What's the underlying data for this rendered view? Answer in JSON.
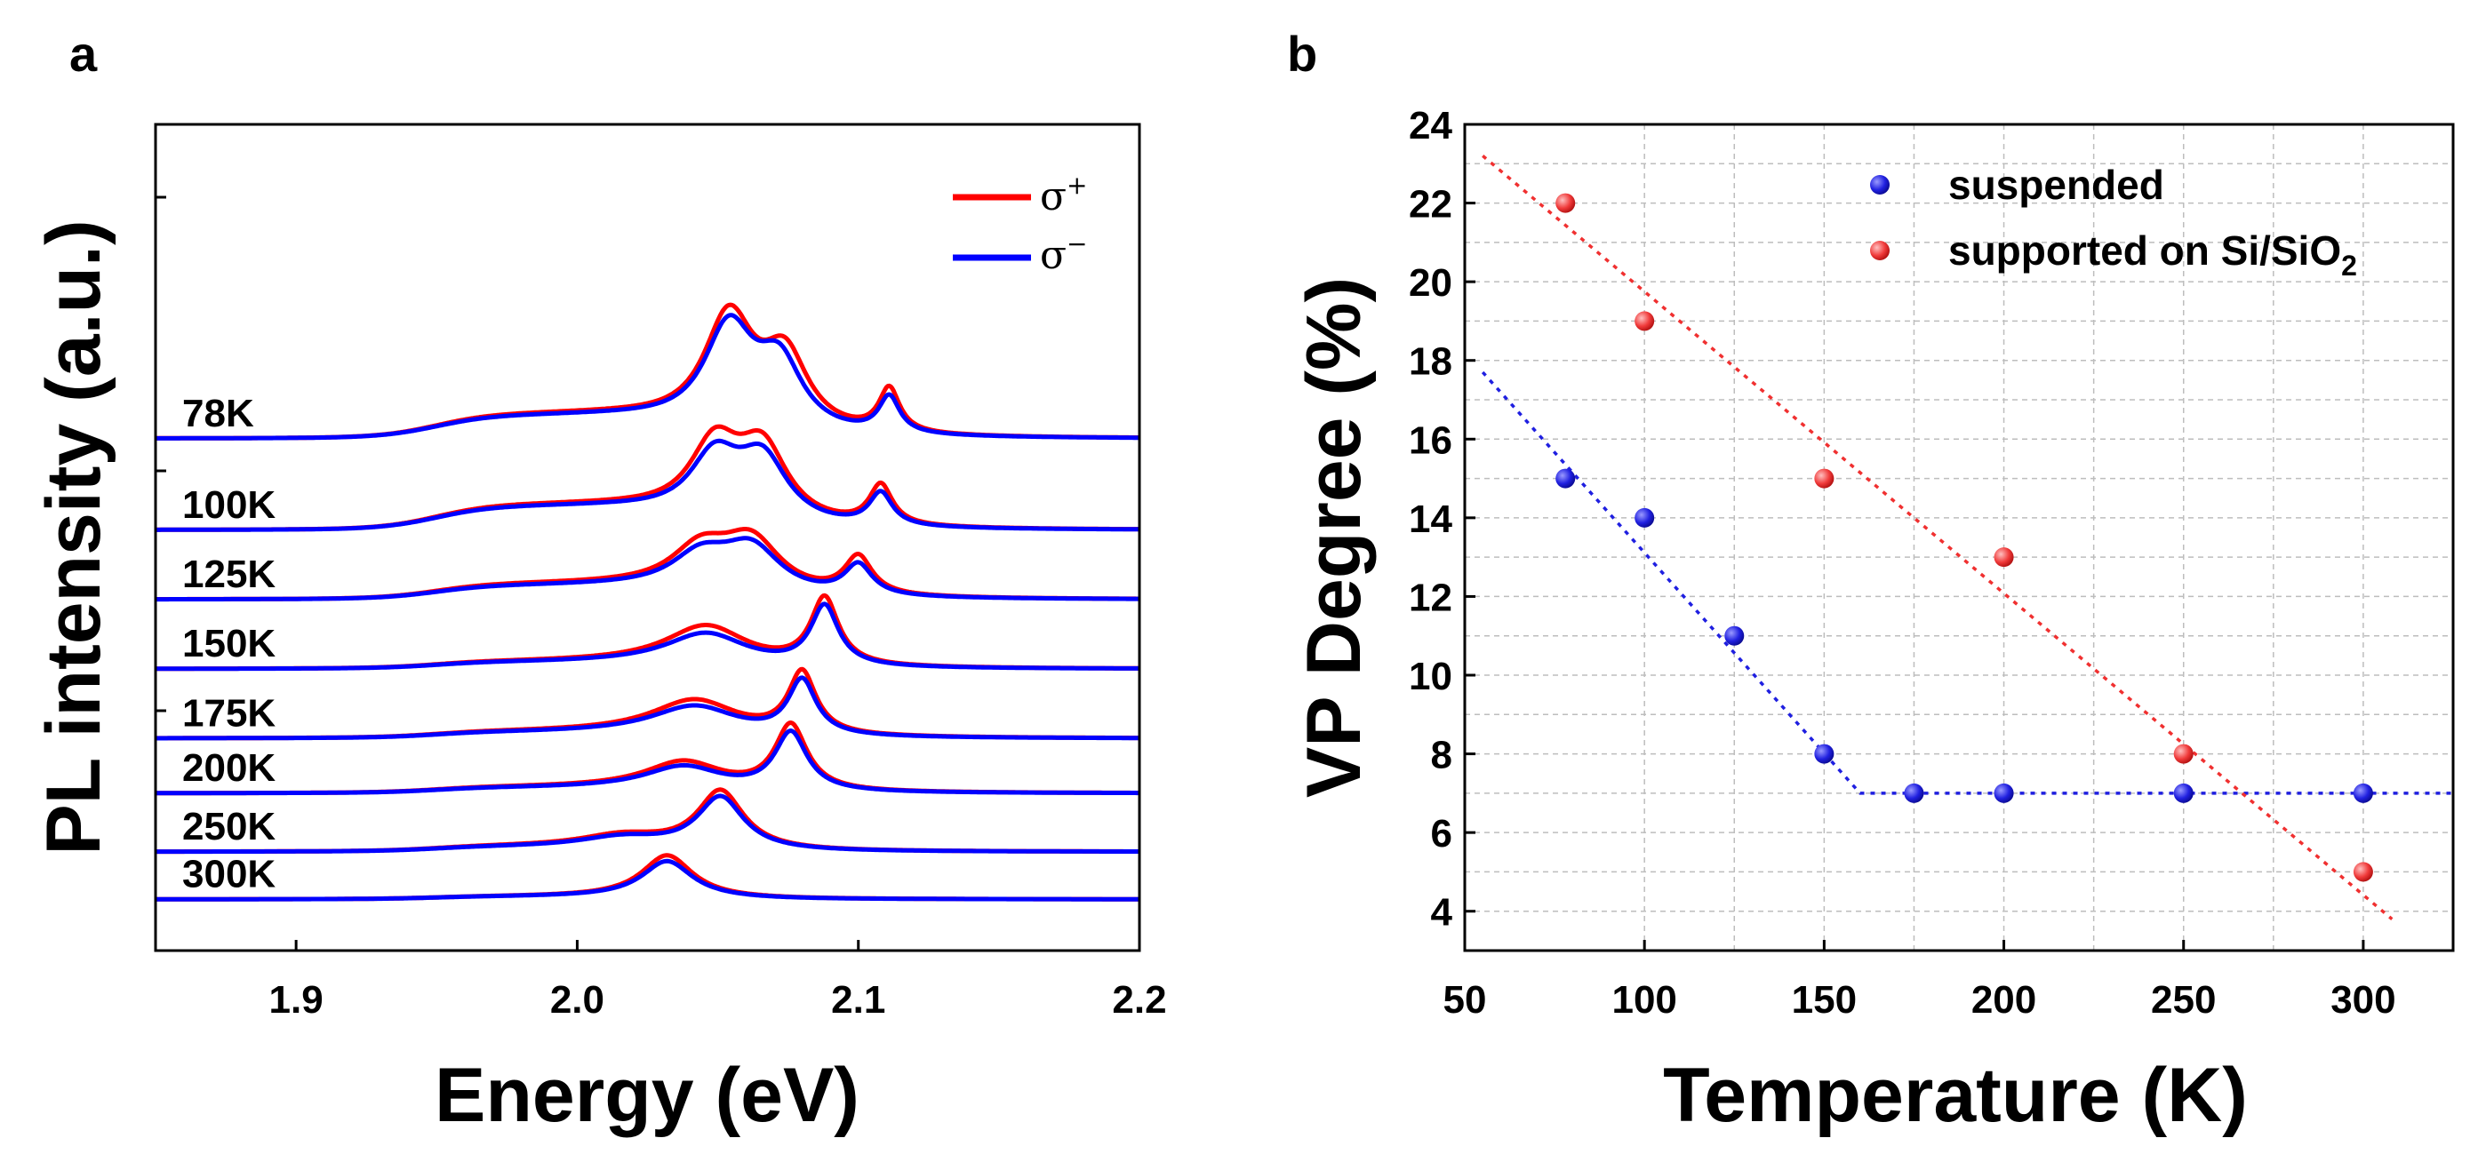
{
  "chart_data": [
    {
      "panel": "a",
      "type": "line",
      "xlabel": "Energy (eV)",
      "ylabel": "PL intensity (a.u.)",
      "xlim": [
        1.85,
        2.2
      ],
      "xticks": [
        "1.9",
        "2.0",
        "2.1",
        "2.2"
      ],
      "xtick_values": [
        1.9,
        2.0,
        2.1,
        2.2
      ],
      "legend": [
        {
          "name": "σ+",
          "base": "σ",
          "sup": "+",
          "color": "#ff0000"
        },
        {
          "name": "σ−",
          "base": "σ",
          "sup": "−",
          "color": "#0000ff"
        }
      ],
      "series": [
        {
          "temperature": "78K",
          "offset": 7.0,
          "sigma_plus": {
            "shoulder": 0.32,
            "peaks": [
              [
                2.054,
                1.55,
                0.011
              ],
              [
                2.074,
                1.0,
                0.01
              ],
              [
                2.111,
                0.6,
                0.0045
              ]
            ]
          },
          "sigma_minus": {
            "shoulder": 0.3,
            "peaks": [
              [
                2.054,
                1.4,
                0.011
              ],
              [
                2.072,
                0.9,
                0.01
              ],
              [
                2.111,
                0.5,
                0.0045
              ]
            ]
          }
        },
        {
          "temperature": "100K",
          "offset": 5.75,
          "sigma_plus": {
            "shoulder": 0.33,
            "peaks": [
              [
                2.049,
                1.0,
                0.011
              ],
              [
                2.066,
                1.0,
                0.011
              ],
              [
                2.108,
                0.55,
                0.005
              ]
            ]
          },
          "sigma_minus": {
            "shoulder": 0.31,
            "peaks": [
              [
                2.049,
                0.85,
                0.011
              ],
              [
                2.066,
                0.87,
                0.011
              ],
              [
                2.108,
                0.45,
                0.005
              ]
            ]
          }
        },
        {
          "temperature": "125K",
          "offset": 4.8,
          "sigma_plus": {
            "shoulder": 0.2,
            "peaks": [
              [
                2.044,
                0.55,
                0.013
              ],
              [
                2.062,
                0.72,
                0.013
              ],
              [
                2.1,
                0.52,
                0.006
              ]
            ]
          },
          "sigma_minus": {
            "shoulder": 0.18,
            "peaks": [
              [
                2.044,
                0.47,
                0.013
              ],
              [
                2.062,
                0.63,
                0.013
              ],
              [
                2.1,
                0.42,
                0.006
              ]
            ]
          }
        },
        {
          "temperature": "150K",
          "offset": 3.85,
          "sigma_plus": {
            "shoulder": 0.13,
            "peaks": [
              [
                2.046,
                0.55,
                0.018
              ],
              [
                2.088,
                0.92,
                0.006
              ]
            ]
          },
          "sigma_minus": {
            "shoulder": 0.12,
            "peaks": [
              [
                2.046,
                0.45,
                0.018
              ],
              [
                2.088,
                0.82,
                0.006
              ]
            ]
          }
        },
        {
          "temperature": "175K",
          "offset": 2.9,
          "sigma_plus": {
            "shoulder": 0.12,
            "peaks": [
              [
                2.042,
                0.48,
                0.019
              ],
              [
                2.08,
                0.85,
                0.006
              ]
            ]
          },
          "sigma_minus": {
            "shoulder": 0.11,
            "peaks": [
              [
                2.042,
                0.4,
                0.019
              ],
              [
                2.08,
                0.75,
                0.006
              ]
            ]
          }
        },
        {
          "temperature": "200K",
          "offset": 2.15,
          "sigma_plus": {
            "shoulder": 0.11,
            "peaks": [
              [
                2.038,
                0.38,
                0.017
              ],
              [
                2.076,
                0.9,
                0.007
              ]
            ]
          },
          "sigma_minus": {
            "shoulder": 0.1,
            "peaks": [
              [
                2.038,
                0.32,
                0.017
              ],
              [
                2.076,
                0.8,
                0.007
              ]
            ]
          }
        },
        {
          "temperature": "250K",
          "offset": 1.35,
          "sigma_plus": {
            "shoulder": 0.1,
            "peaks": [
              [
                2.016,
                0.15,
                0.018
              ],
              [
                2.051,
                0.8,
                0.01
              ]
            ]
          },
          "sigma_minus": {
            "shoulder": 0.09,
            "peaks": [
              [
                2.016,
                0.13,
                0.018
              ],
              [
                2.051,
                0.72,
                0.01
              ]
            ]
          }
        },
        {
          "temperature": "300K",
          "offset": 0.7,
          "sigma_plus": {
            "shoulder": 0.05,
            "peaks": [
              [
                2.032,
                0.58,
                0.011
              ]
            ]
          },
          "sigma_minus": {
            "shoulder": 0.05,
            "peaks": [
              [
                2.032,
                0.5,
                0.011
              ]
            ]
          }
        }
      ]
    },
    {
      "panel": "b",
      "type": "scatter",
      "xlabel": "Temperature (K)",
      "ylabel": "VP Degree (%)",
      "xlim": [
        50,
        325
      ],
      "ylim": [
        3,
        24
      ],
      "xticks": [
        50,
        100,
        150,
        200,
        250,
        300
      ],
      "yticks": [
        4,
        6,
        8,
        10,
        12,
        14,
        16,
        18,
        20,
        22,
        24
      ],
      "grid": true,
      "legend_position": "top-right",
      "series": [
        {
          "name": "suspended",
          "color": "#1f1fe0",
          "x": [
            78,
            100,
            125,
            150,
            175,
            200,
            250,
            300
          ],
          "y": [
            15,
            14,
            11,
            8,
            7,
            7,
            7,
            7
          ],
          "fit": [
            [
              55,
              17.7
            ],
            [
              160,
              7.0
            ],
            [
              325,
              7.0
            ]
          ]
        },
        {
          "name": "supported on Si/SiO2",
          "label_main": "supported on Si/SiO",
          "label_sub": "2",
          "color": "#f03030",
          "x": [
            78,
            100,
            150,
            200,
            250,
            300
          ],
          "y": [
            22,
            19,
            15,
            13,
            8,
            5
          ],
          "fit": [
            [
              55,
              23.2
            ],
            [
              308,
              3.8
            ]
          ]
        }
      ]
    }
  ]
}
